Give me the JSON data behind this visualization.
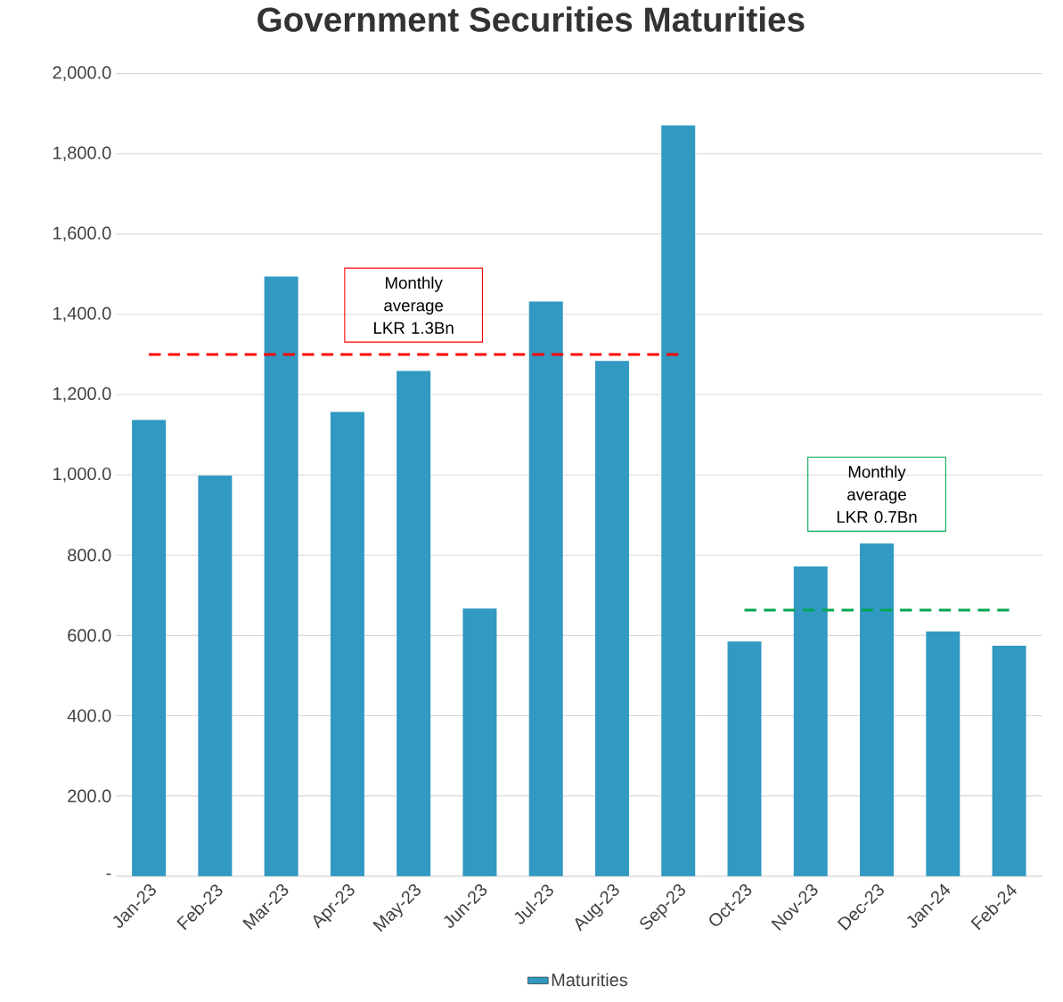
{
  "chart_data": {
    "type": "bar",
    "title": "Government Securities Maturities",
    "categories": [
      "Jan-23",
      "Feb-23",
      "Mar-23",
      "Apr-23",
      "May-23",
      "Jun-23",
      "Jul-23",
      "Aug-23",
      "Sep-23",
      "Oct-23",
      "Nov-23",
      "Dec-23",
      "Jan-24",
      "Feb-24"
    ],
    "series": [
      {
        "name": "Maturities",
        "color": "#3199c2",
        "values": [
          1137,
          998,
          1494,
          1157,
          1259,
          667,
          1432,
          1284,
          1871,
          585,
          772,
          829,
          610,
          574
        ]
      },
      {
        "type": "line",
        "color": "#ff0000",
        "line_style": "dashed",
        "values": [
          1300,
          1300,
          1300,
          1300,
          1300,
          1300,
          1300,
          1300,
          1300,
          null,
          null,
          null,
          null,
          null
        ]
      },
      {
        "type": "line",
        "color": "#00a651",
        "line_style": "dashed",
        "values": [
          null,
          null,
          null,
          null,
          null,
          null,
          null,
          null,
          null,
          663,
          663,
          663,
          663,
          663
        ]
      }
    ],
    "annotations": [
      "Monthly average LKR 1.3Bn",
      "Monthly average LKR 0.7Bn"
    ],
    "ylim": [
      0,
      2000
    ],
    "yticks": [
      {
        "value": 0,
        "label": "-"
      },
      {
        "value": 200,
        "label": "200.0"
      },
      {
        "value": 400,
        "label": "400.0"
      },
      {
        "value": 600,
        "label": "600.0"
      },
      {
        "value": 800,
        "label": "800.0"
      },
      {
        "value": 1000,
        "label": "1,000.0"
      },
      {
        "value": 1200,
        "label": "1,200.0"
      },
      {
        "value": 1400,
        "label": "1,400.0"
      },
      {
        "value": 1600,
        "label": "1,600.0"
      },
      {
        "value": 1800,
        "label": "1,800.0"
      },
      {
        "value": 2000,
        "label": "2,000.0"
      }
    ],
    "grid": "y",
    "legend": "bottom"
  }
}
